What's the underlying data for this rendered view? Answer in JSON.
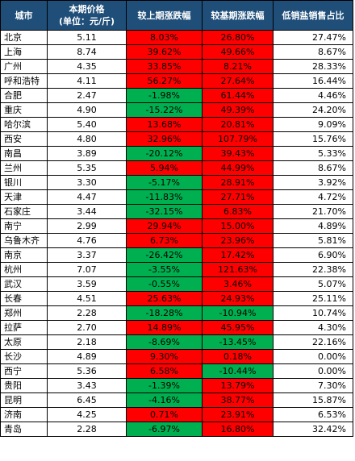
{
  "header": {
    "city": "城市",
    "price_line1": "本期价格",
    "price_line2": "(单位：元/斤)",
    "mom": "较上期涨跌幅",
    "yoy": "较基期涨跌幅",
    "share": "低销盐销售占比"
  },
  "colors": {
    "header_bg": "#1f4e79",
    "up": "#ff0000",
    "down": "#00b050"
  },
  "rows": [
    {
      "city": "北京",
      "price": "5.11",
      "mom": "8.03%",
      "mom_dir": "up",
      "yoy": "26.80%",
      "yoy_dir": "up",
      "share": "27.47%"
    },
    {
      "city": "上海",
      "price": "8.74",
      "mom": "39.62%",
      "mom_dir": "up",
      "yoy": "49.66%",
      "yoy_dir": "up",
      "share": "8.67%"
    },
    {
      "city": "广州",
      "price": "4.35",
      "mom": "33.85%",
      "mom_dir": "up",
      "yoy": "8.21%",
      "yoy_dir": "up",
      "share": "28.33%"
    },
    {
      "city": "呼和浩特",
      "price": "4.11",
      "mom": "56.27%",
      "mom_dir": "up",
      "yoy": "27.64%",
      "yoy_dir": "up",
      "share": "16.44%"
    },
    {
      "city": "合肥",
      "price": "2.47",
      "mom": "-1.98%",
      "mom_dir": "down",
      "yoy": "61.44%",
      "yoy_dir": "up",
      "share": "4.46%"
    },
    {
      "city": "重庆",
      "price": "4.90",
      "mom": "-15.22%",
      "mom_dir": "down",
      "yoy": "49.39%",
      "yoy_dir": "up",
      "share": "24.20%"
    },
    {
      "city": "哈尔滨",
      "price": "5.40",
      "mom": "13.68%",
      "mom_dir": "up",
      "yoy": "20.81%",
      "yoy_dir": "up",
      "share": "9.09%"
    },
    {
      "city": "西安",
      "price": "4.80",
      "mom": "32.96%",
      "mom_dir": "up",
      "yoy": "107.79%",
      "yoy_dir": "up",
      "share": "15.76%"
    },
    {
      "city": "南昌",
      "price": "3.89",
      "mom": "-20.12%",
      "mom_dir": "down",
      "yoy": "39.43%",
      "yoy_dir": "up",
      "share": "5.33%"
    },
    {
      "city": "兰州",
      "price": "5.35",
      "mom": "5.94%",
      "mom_dir": "up",
      "yoy": "44.99%",
      "yoy_dir": "up",
      "share": "8.67%"
    },
    {
      "city": "银川",
      "price": "3.30",
      "mom": "-5.17%",
      "mom_dir": "down",
      "yoy": "28.91%",
      "yoy_dir": "up",
      "share": "3.92%"
    },
    {
      "city": "天津",
      "price": "4.47",
      "mom": "-11.83%",
      "mom_dir": "down",
      "yoy": "27.71%",
      "yoy_dir": "up",
      "share": "4.72%"
    },
    {
      "city": "石家庄",
      "price": "3.44",
      "mom": "-32.15%",
      "mom_dir": "down",
      "yoy": "6.83%",
      "yoy_dir": "up",
      "share": "21.70%"
    },
    {
      "city": "南宁",
      "price": "2.99",
      "mom": "29.94%",
      "mom_dir": "up",
      "yoy": "15.00%",
      "yoy_dir": "up",
      "share": "4.89%"
    },
    {
      "city": "乌鲁木齐",
      "price": "4.76",
      "mom": "6.73%",
      "mom_dir": "up",
      "yoy": "23.96%",
      "yoy_dir": "up",
      "share": "5.81%"
    },
    {
      "city": "南京",
      "price": "3.37",
      "mom": "-26.42%",
      "mom_dir": "down",
      "yoy": "17.42%",
      "yoy_dir": "up",
      "share": "6.90%"
    },
    {
      "city": "杭州",
      "price": "7.07",
      "mom": "-3.55%",
      "mom_dir": "down",
      "yoy": "121.63%",
      "yoy_dir": "up",
      "share": "22.38%"
    },
    {
      "city": "武汉",
      "price": "3.59",
      "mom": "-0.55%",
      "mom_dir": "down",
      "yoy": "3.46%",
      "yoy_dir": "up",
      "share": "5.07%"
    },
    {
      "city": "长春",
      "price": "4.51",
      "mom": "25.63%",
      "mom_dir": "up",
      "yoy": "24.93%",
      "yoy_dir": "up",
      "share": "25.11%"
    },
    {
      "city": "郑州",
      "price": "2.28",
      "mom": "-18.28%",
      "mom_dir": "down",
      "yoy": "-10.94%",
      "yoy_dir": "down",
      "share": "10.74%"
    },
    {
      "city": "拉萨",
      "price": "2.70",
      "mom": "14.89%",
      "mom_dir": "up",
      "yoy": "45.95%",
      "yoy_dir": "up",
      "share": "4.30%"
    },
    {
      "city": "太原",
      "price": "2.18",
      "mom": "-8.69%",
      "mom_dir": "down",
      "yoy": "-13.45%",
      "yoy_dir": "down",
      "share": "22.16%"
    },
    {
      "city": "长沙",
      "price": "4.89",
      "mom": "9.30%",
      "mom_dir": "up",
      "yoy": "0.18%",
      "yoy_dir": "up",
      "share": "0.00%"
    },
    {
      "city": "西宁",
      "price": "5.36",
      "mom": "6.58%",
      "mom_dir": "up",
      "yoy": "-10.44%",
      "yoy_dir": "down",
      "share": "0.00%"
    },
    {
      "city": "贵阳",
      "price": "3.43",
      "mom": "-1.39%",
      "mom_dir": "down",
      "yoy": "13.79%",
      "yoy_dir": "up",
      "share": "7.30%"
    },
    {
      "city": "昆明",
      "price": "6.45",
      "mom": "-4.16%",
      "mom_dir": "down",
      "yoy": "38.77%",
      "yoy_dir": "up",
      "share": "15.87%"
    },
    {
      "city": "济南",
      "price": "4.25",
      "mom": "0.71%",
      "mom_dir": "up",
      "yoy": "23.91%",
      "yoy_dir": "up",
      "share": "6.53%"
    },
    {
      "city": "青岛",
      "price": "2.28",
      "mom": "-6.97%",
      "mom_dir": "down",
      "yoy": "16.80%",
      "yoy_dir": "up",
      "share": "32.42%"
    }
  ]
}
